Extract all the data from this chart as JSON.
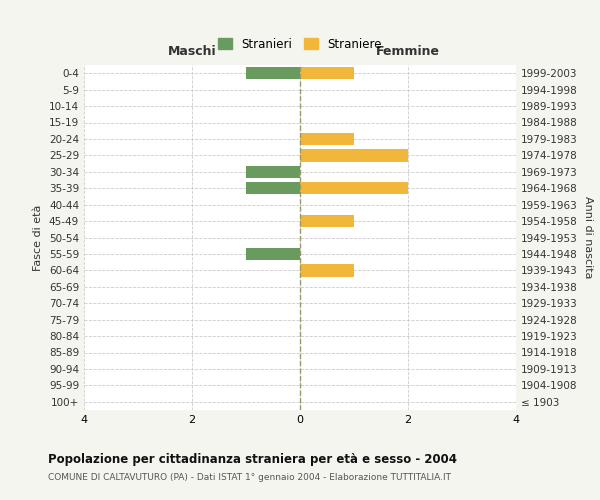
{
  "age_groups": [
    "100+",
    "95-99",
    "90-94",
    "85-89",
    "80-84",
    "75-79",
    "70-74",
    "65-69",
    "60-64",
    "55-59",
    "50-54",
    "45-49",
    "40-44",
    "35-39",
    "30-34",
    "25-29",
    "20-24",
    "15-19",
    "10-14",
    "5-9",
    "0-4"
  ],
  "birth_years": [
    "≤ 1903",
    "1904-1908",
    "1909-1913",
    "1914-1918",
    "1919-1923",
    "1924-1928",
    "1929-1933",
    "1934-1938",
    "1939-1943",
    "1944-1948",
    "1949-1953",
    "1954-1958",
    "1959-1963",
    "1964-1968",
    "1969-1973",
    "1974-1978",
    "1979-1983",
    "1984-1988",
    "1989-1993",
    "1994-1998",
    "1999-2003"
  ],
  "males": [
    0,
    0,
    0,
    0,
    0,
    0,
    0,
    0,
    0,
    -1,
    0,
    0,
    0,
    -1,
    -1,
    0,
    0,
    0,
    0,
    0,
    -1
  ],
  "females": [
    0,
    0,
    0,
    0,
    0,
    0,
    0,
    0,
    1,
    0,
    0,
    1,
    0,
    2,
    0,
    2,
    1,
    0,
    0,
    0,
    1
  ],
  "male_color": "#6a9b5e",
  "female_color": "#f0b73a",
  "background_color": "#f5f5f0",
  "grid_color": "#cccccc",
  "title": "Popolazione per cittadinanza straniera per età e sesso - 2004",
  "subtitle": "COMUNE DI CALTAVUTURO (PA) - Dati ISTAT 1° gennaio 2004 - Elaborazione TUTTITALIA.IT",
  "xlabel_maschi": "Maschi",
  "xlabel_femmine": "Femmine",
  "ylabel_left": "Fasce di età",
  "ylabel_right": "Anni di nascita",
  "legend_male": "Stranieri",
  "legend_female": "Straniere",
  "xlim": [
    -4,
    4
  ],
  "xticks": [
    -4,
    -2,
    0,
    2,
    4
  ],
  "xticklabels": [
    "4",
    "2",
    "0",
    "2",
    "4"
  ]
}
